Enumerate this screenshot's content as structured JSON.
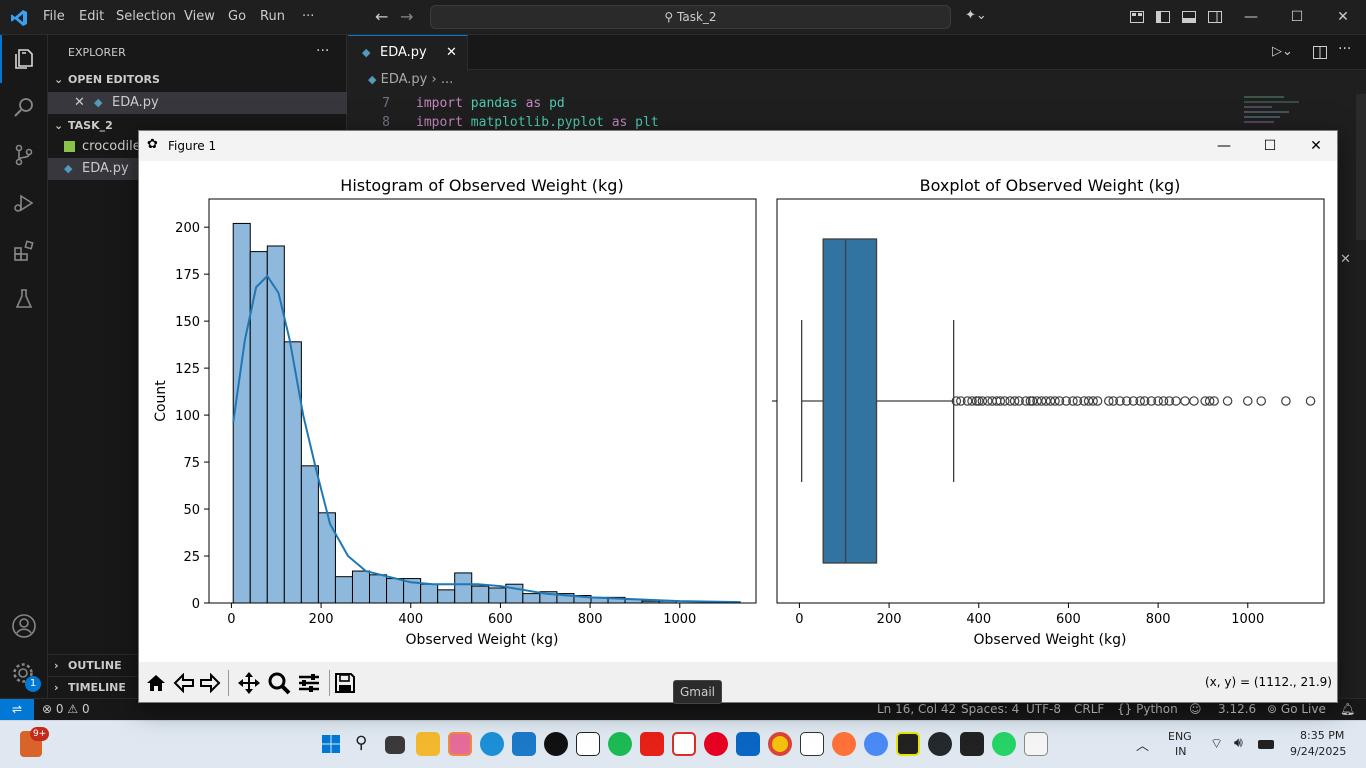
{
  "titlebar": {
    "menus": [
      "File",
      "Edit",
      "Selection",
      "View",
      "Go",
      "Run",
      "···"
    ],
    "search": "Task_2"
  },
  "sidebar": {
    "title": "EXPLORER",
    "more": "···",
    "open_editors": "OPEN EDITORS",
    "open_file": "EDA.py",
    "workspace": "TASK_2",
    "files": [
      "crocodile_",
      "EDA.py"
    ],
    "outline": "OUTLINE",
    "timeline": "TIMELINE"
  },
  "editor": {
    "tab": "EDA.py",
    "breadcrumb_file": "EDA.py",
    "breadcrumb_more": "...",
    "lines": [
      {
        "num": "7",
        "kw1": "import",
        "mod": "pandas",
        "kw2": "as",
        "alias": "pd"
      },
      {
        "num": "8",
        "kw1": "import",
        "mod": "matplotlib.pyplot",
        "kw2": "as",
        "alias": "plt"
      }
    ]
  },
  "statusbar": {
    "errors": "0",
    "warnings": "0",
    "position": "Ln 16, Col 42",
    "spaces": "Spaces: 4",
    "encoding": "UTF-8",
    "eol": "CRLF",
    "language": "Python",
    "version": "3.12.6",
    "golive": "Go Live",
    "badge": "1"
  },
  "figure": {
    "title": "Figure 1",
    "coords": "(x, y) = (1112., 21.9)"
  },
  "tooltip": "Gmail",
  "taskbar": {
    "lang1": "ENG",
    "lang2": "IN",
    "time": "8:35 PM",
    "date": "9/24/2025",
    "badge": "9+"
  },
  "colors": {
    "vscode_blue": "#0078d4",
    "hist_fill": "#8fb9dc",
    "kde": "#1f77b4",
    "box": "#3274a1"
  },
  "chart_data": [
    {
      "type": "bar",
      "title": "Histogram of Observed Weight (kg)",
      "xlabel": "Observed Weight (kg)",
      "ylabel": "Count",
      "xlim": [
        -50,
        1170
      ],
      "ylim": [
        0,
        215
      ],
      "xticks": [
        0,
        200,
        400,
        600,
        800,
        1000
      ],
      "yticks": [
        0,
        25,
        50,
        75,
        100,
        125,
        150,
        175,
        200
      ],
      "bin_start": 4,
      "bin_width": 38,
      "values": [
        202,
        187,
        190,
        139,
        73,
        48,
        14,
        17,
        15,
        13,
        13,
        10,
        7,
        16,
        9,
        8,
        10,
        5,
        6,
        5,
        4,
        3,
        3,
        2,
        1,
        1,
        0,
        0,
        0,
        0
      ],
      "kde_x": [
        4,
        30,
        55,
        80,
        105,
        130,
        160,
        190,
        220,
        260,
        300,
        350,
        400,
        450,
        500,
        550,
        600,
        650,
        700,
        800,
        900,
        1000,
        1136
      ],
      "kde_y": [
        96,
        140,
        168,
        174,
        165,
        140,
        100,
        70,
        42,
        25,
        17,
        14,
        11,
        10,
        10,
        10,
        9,
        7,
        5,
        3,
        2,
        1,
        0.5
      ]
    },
    {
      "type": "box",
      "title": "Boxplot of Observed Weight (kg)",
      "xlabel": "Observed Weight (kg)",
      "xlim": [
        -50,
        1170
      ],
      "xticks": [
        0,
        200,
        400,
        600,
        800,
        1000
      ],
      "whisker_low": 5,
      "q1": 53,
      "median": 103,
      "q3": 172,
      "whisker_high": 344,
      "outliers": [
        350,
        360,
        375,
        385,
        395,
        400,
        408,
        420,
        430,
        440,
        448,
        458,
        470,
        480,
        490,
        505,
        515,
        520,
        530,
        540,
        550,
        560,
        570,
        580,
        595,
        610,
        620,
        635,
        645,
        655,
        665,
        690,
        700,
        715,
        730,
        745,
        760,
        770,
        785,
        800,
        812,
        825,
        840,
        860,
        880,
        905,
        915,
        925,
        955,
        1000,
        1030,
        1085,
        1140
      ]
    }
  ]
}
